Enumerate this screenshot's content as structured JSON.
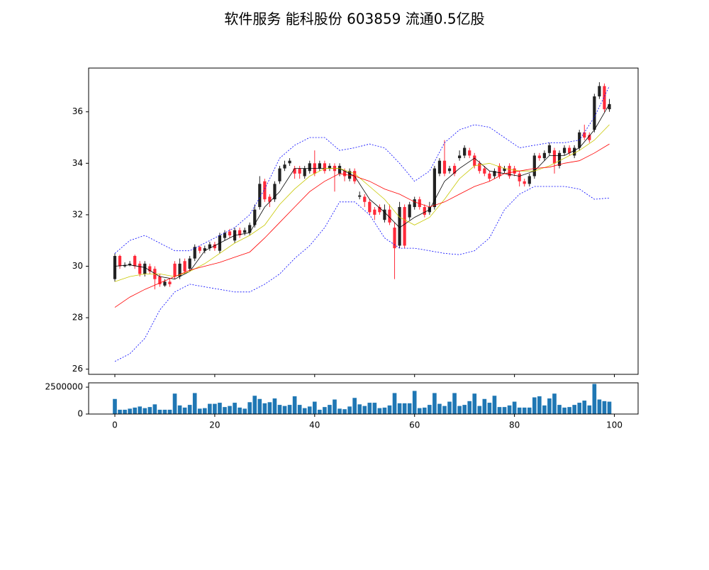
{
  "chart_data": {
    "type": "candlestick",
    "title": "软件服务 能科股份 603859 流通0.5亿股",
    "up_color": "#222222",
    "down_color": "#ff2a3a",
    "x": [
      0,
      1,
      2,
      3,
      4,
      5,
      6,
      7,
      8,
      9,
      10,
      11,
      12,
      13,
      14,
      15,
      16,
      17,
      18,
      19,
      20,
      21,
      22,
      23,
      24,
      25,
      26,
      27,
      28,
      29,
      30,
      31,
      32,
      33,
      34,
      35,
      36,
      37,
      38,
      39,
      40,
      41,
      42,
      43,
      44,
      45,
      46,
      47,
      48,
      49,
      50,
      51,
      52,
      53,
      54,
      55,
      56,
      57,
      58,
      59,
      60,
      61,
      62,
      63,
      64,
      65,
      66,
      67,
      68,
      69,
      70,
      71,
      72,
      73,
      74,
      75,
      76,
      77,
      78,
      79,
      80,
      81,
      82,
      83,
      84,
      85,
      86,
      87,
      88,
      89,
      90,
      91,
      92,
      93,
      94,
      95,
      96,
      97,
      98,
      99
    ],
    "open": [
      29.5,
      30.4,
      30.0,
      30.05,
      30.4,
      30.1,
      29.7,
      30.0,
      29.9,
      29.6,
      29.25,
      29.4,
      30.1,
      29.6,
      30.2,
      29.9,
      30.3,
      30.75,
      30.6,
      30.7,
      30.85,
      30.6,
      31.1,
      31.35,
      31.0,
      31.4,
      31.3,
      31.3,
      31.6,
      32.3,
      33.3,
      32.7,
      32.6,
      33.3,
      33.8,
      34.0,
      33.8,
      33.8,
      33.5,
      33.7,
      34.0,
      33.8,
      34.0,
      33.8,
      33.9,
      33.6,
      33.7,
      33.4,
      33.7,
      32.7,
      32.7,
      32.5,
      32.2,
      32.3,
      31.8,
      32.2,
      31.5,
      30.8,
      32.3,
      31.9,
      32.3,
      32.6,
      32.3,
      32.1,
      32.3,
      33.6,
      34.1,
      33.7,
      33.9,
      34.2,
      34.3,
      34.5,
      34.3,
      34.0,
      33.8,
      33.6,
      33.5,
      33.9,
      33.7,
      33.9,
      33.8,
      33.6,
      33.3,
      33.2,
      33.5,
      34.3,
      34.2,
      34.4,
      34.5,
      33.9,
      34.4,
      34.6,
      34.3,
      34.6,
      35.2,
      35.1,
      35.3,
      36.6,
      37.0,
      36.1
    ],
    "close": [
      30.4,
      30.0,
      30.05,
      30.1,
      30.0,
      29.7,
      30.1,
      29.8,
      29.5,
      29.3,
      29.4,
      29.3,
      29.6,
      30.1,
      29.8,
      30.3,
      30.75,
      30.6,
      30.7,
      30.85,
      30.7,
      31.2,
      31.3,
      31.2,
      31.4,
      31.2,
      31.4,
      31.6,
      32.2,
      33.2,
      32.6,
      32.5,
      33.2,
      33.8,
      33.95,
      34.1,
      33.6,
      33.6,
      33.8,
      34.0,
      33.6,
      34.0,
      33.7,
      33.9,
      33.7,
      33.9,
      33.5,
      33.7,
      33.3,
      32.75,
      32.5,
      32.1,
      32.0,
      32.1,
      32.2,
      31.7,
      30.7,
      32.3,
      30.8,
      32.4,
      32.6,
      32.3,
      32.0,
      32.3,
      33.8,
      34.1,
      33.6,
      33.8,
      33.6,
      34.3,
      34.6,
      34.3,
      33.9,
      33.7,
      33.6,
      33.4,
      33.7,
      33.5,
      33.8,
      33.5,
      33.6,
      33.3,
      33.2,
      33.5,
      34.3,
      34.2,
      34.4,
      34.7,
      34.0,
      34.4,
      34.6,
      34.4,
      34.6,
      35.2,
      35.0,
      34.9,
      36.6,
      37.0,
      36.1,
      36.3
    ],
    "high": [
      30.5,
      30.45,
      30.15,
      30.2,
      30.45,
      30.2,
      30.2,
      30.1,
      30.0,
      29.7,
      29.5,
      29.5,
      30.2,
      30.3,
      30.3,
      30.4,
      30.85,
      30.8,
      30.8,
      30.95,
      30.95,
      31.3,
      31.4,
      31.45,
      31.5,
      31.5,
      31.5,
      31.7,
      32.4,
      33.5,
      33.4,
      32.8,
      33.3,
      33.9,
      34.1,
      34.2,
      33.9,
      33.9,
      33.9,
      34.1,
      34.5,
      34.1,
      34.1,
      34.0,
      34.0,
      34.0,
      33.8,
      33.8,
      33.8,
      32.9,
      32.8,
      32.6,
      32.3,
      32.4,
      32.4,
      32.4,
      31.7,
      32.5,
      32.4,
      32.5,
      32.7,
      32.7,
      32.4,
      32.5,
      33.9,
      34.2,
      34.9,
      33.9,
      34.0,
      34.5,
      34.7,
      34.6,
      34.4,
      34.1,
      33.9,
      33.7,
      33.8,
      34.0,
      33.9,
      34.0,
      33.9,
      33.7,
      33.4,
      33.6,
      34.4,
      34.4,
      34.5,
      34.8,
      34.6,
      34.5,
      34.7,
      34.7,
      34.7,
      35.3,
      35.5,
      35.2,
      36.7,
      37.15,
      37.1,
      36.5
    ],
    "low": [
      29.4,
      29.9,
      29.95,
      30.0,
      29.9,
      29.6,
      29.6,
      29.7,
      29.1,
      29.2,
      29.2,
      29.2,
      29.5,
      29.5,
      29.7,
      29.8,
      30.2,
      30.5,
      30.5,
      30.6,
      30.6,
      30.5,
      31.0,
      31.1,
      30.9,
      31.1,
      31.2,
      31.2,
      31.5,
      32.2,
      32.5,
      32.3,
      32.5,
      33.2,
      33.7,
      33.9,
      33.4,
      33.4,
      33.4,
      33.6,
      33.5,
      33.7,
      33.6,
      33.7,
      32.9,
      33.5,
      33.3,
      33.3,
      33.2,
      32.6,
      32.3,
      32.0,
      31.8,
      32.0,
      31.7,
      31.6,
      29.5,
      30.7,
      30.7,
      31.8,
      32.2,
      32.2,
      31.9,
      32.0,
      32.2,
      33.5,
      33.5,
      33.6,
      33.5,
      34.1,
      34.2,
      34.2,
      33.8,
      33.6,
      33.5,
      33.3,
      33.4,
      33.4,
      33.6,
      33.4,
      33.5,
      33.1,
      33.1,
      33.1,
      33.4,
      34.1,
      34.1,
      34.3,
      33.6,
      33.8,
      34.3,
      34.3,
      34.2,
      34.5,
      34.9,
      34.8,
      35.2,
      36.5,
      36.0,
      36.0
    ],
    "lines_x": [
      0,
      3,
      6,
      9,
      12,
      15,
      18,
      21,
      24,
      27,
      30,
      33,
      36,
      39,
      42,
      45,
      48,
      51,
      54,
      57,
      60,
      63,
      66,
      69,
      72,
      75,
      78,
      81,
      84,
      87,
      90,
      93,
      96,
      99
    ],
    "lines": [
      {
        "color": "#000000",
        "dashed": false,
        "values": [
          30.0,
          30.05,
          29.95,
          29.6,
          29.5,
          29.8,
          30.6,
          30.9,
          31.2,
          31.3,
          32.3,
          32.9,
          33.8,
          33.8,
          33.8,
          33.8,
          33.5,
          32.6,
          32.1,
          31.5,
          31.9,
          32.2,
          33.3,
          33.8,
          34.2,
          33.7,
          33.6,
          33.5,
          33.7,
          34.3,
          34.3,
          34.6,
          35.3,
          36.3
        ]
      },
      {
        "color": "#c8c800",
        "dashed": false,
        "values": [
          29.4,
          29.6,
          29.7,
          29.7,
          29.6,
          29.8,
          30.1,
          30.5,
          30.9,
          31.2,
          31.6,
          32.4,
          33.0,
          33.5,
          33.8,
          33.8,
          33.6,
          33.1,
          32.6,
          31.9,
          31.6,
          31.9,
          32.6,
          33.4,
          33.9,
          34.0,
          33.8,
          33.7,
          33.7,
          33.9,
          34.2,
          34.5,
          34.9,
          35.5
        ]
      },
      {
        "color": "#ff0000",
        "dashed": false,
        "values": [
          28.4,
          28.8,
          29.1,
          29.35,
          29.6,
          29.85,
          30.0,
          30.15,
          30.35,
          30.55,
          31.1,
          31.7,
          32.3,
          32.9,
          33.3,
          33.6,
          33.5,
          33.3,
          33.0,
          32.8,
          32.5,
          32.3,
          32.5,
          32.8,
          33.1,
          33.3,
          33.6,
          33.7,
          33.8,
          33.85,
          34.0,
          34.1,
          34.4,
          34.75
        ]
      },
      {
        "color": "#0000ff",
        "dashed": true,
        "values": [
          30.5,
          31.0,
          31.2,
          30.9,
          30.6,
          30.6,
          30.9,
          31.2,
          31.5,
          32.0,
          33.0,
          34.2,
          34.7,
          35.0,
          35.0,
          34.5,
          34.6,
          34.75,
          34.6,
          34.0,
          33.3,
          33.7,
          34.8,
          35.3,
          35.5,
          35.4,
          35.0,
          34.6,
          34.7,
          34.8,
          34.8,
          34.9,
          35.8,
          37.0
        ]
      },
      {
        "color": "#0000ff",
        "dashed": true,
        "values": [
          26.3,
          26.6,
          27.2,
          28.3,
          29.0,
          29.3,
          29.2,
          29.1,
          29.0,
          29.0,
          29.3,
          29.7,
          30.3,
          30.8,
          31.5,
          32.5,
          32.5,
          32.0,
          31.1,
          30.7,
          30.7,
          30.6,
          30.5,
          30.45,
          30.6,
          31.1,
          32.2,
          32.8,
          33.1,
          33.1,
          33.1,
          33.0,
          32.6,
          32.65
        ]
      }
    ],
    "volume": {
      "color": "#1f77b4",
      "ylim": [
        0,
        2900000
      ],
      "yticks": [
        0,
        2500000
      ],
      "values": [
        1400000,
        400000,
        400000,
        500000,
        600000,
        700000,
        550000,
        650000,
        900000,
        400000,
        400000,
        400000,
        1900000,
        800000,
        600000,
        850000,
        1950000,
        500000,
        550000,
        950000,
        950000,
        1050000,
        650000,
        750000,
        1050000,
        600000,
        500000,
        1100000,
        1700000,
        1400000,
        1000000,
        1100000,
        1450000,
        850000,
        750000,
        850000,
        1650000,
        850000,
        550000,
        700000,
        1150000,
        400000,
        650000,
        850000,
        1350000,
        500000,
        450000,
        700000,
        1500000,
        900000,
        750000,
        1050000,
        1050000,
        550000,
        600000,
        800000,
        1950000,
        1000000,
        1000000,
        1000000,
        2150000,
        550000,
        600000,
        850000,
        1950000,
        950000,
        750000,
        1150000,
        1950000,
        750000,
        850000,
        1200000,
        1900000,
        750000,
        1400000,
        1050000,
        1700000,
        650000,
        650000,
        800000,
        1150000,
        600000,
        600000,
        600000,
        1550000,
        1650000,
        800000,
        1450000,
        1900000,
        850000,
        600000,
        650000,
        850000,
        1050000,
        1250000,
        800000,
        2800000,
        1350000,
        1200000,
        1150000
      ]
    },
    "xlim": [
      -5.25,
      104.75
    ],
    "xticks": [
      0,
      20,
      40,
      60,
      80,
      100
    ],
    "ylim": [
      25.8,
      37.7
    ],
    "yticks": [
      26,
      28,
      30,
      32,
      34,
      36
    ]
  }
}
